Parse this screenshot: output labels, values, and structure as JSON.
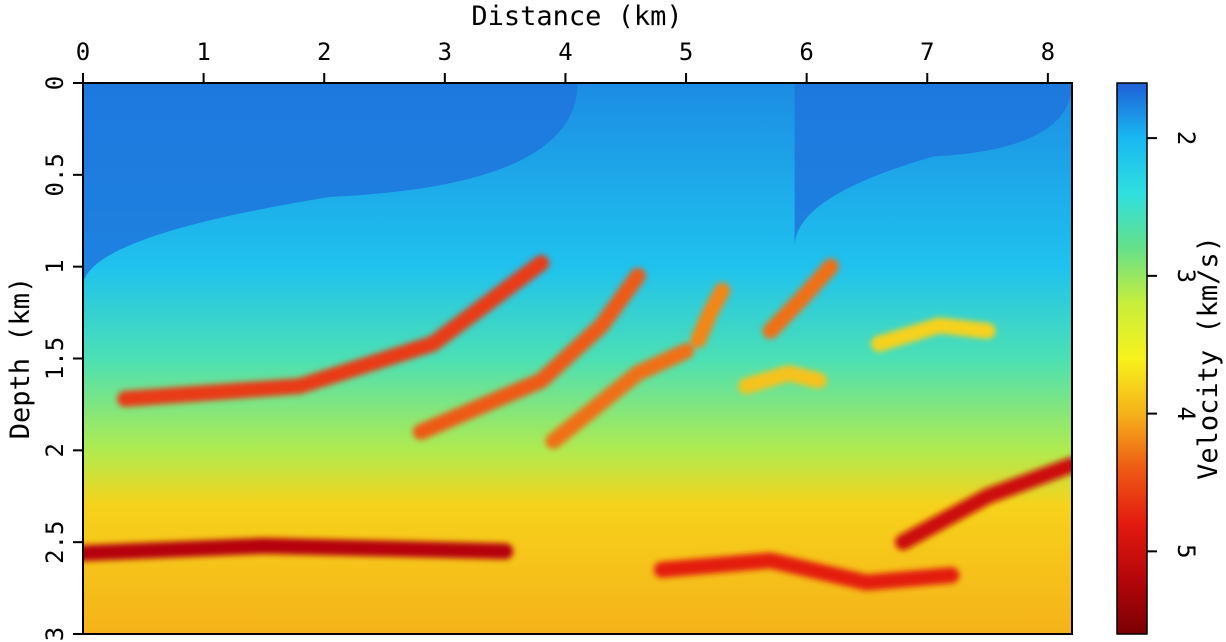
{
  "chart_data": {
    "type": "heatmap",
    "xlabel": "Distance (km)",
    "ylabel": "Depth (km)",
    "colorbar_label": "Velocity (km/s)",
    "x_axis_position": "top",
    "xlim": [
      0,
      8.2
    ],
    "ylim": [
      0,
      3
    ],
    "y_inverted": true,
    "x_ticks": [
      0,
      1,
      2,
      3,
      4,
      5,
      6,
      7,
      8
    ],
    "y_ticks": [
      0,
      0.5,
      1,
      1.5,
      2,
      2.5,
      3
    ],
    "colorbar_range": [
      1.6,
      5.6
    ],
    "colorbar_ticks": [
      2,
      3,
      4,
      5
    ],
    "colormap": [
      "#1f5fd6",
      "#19b8f2",
      "#2fe0e0",
      "#66e08a",
      "#c8ee3c",
      "#f7f21c",
      "#f5b21a",
      "#ee5a14",
      "#e31a10",
      "#b5060a",
      "#7a0004"
    ],
    "grid": false,
    "features": {
      "background_layers": [
        {
          "depth": 0.0,
          "velocity": 1.8
        },
        {
          "depth": 1.0,
          "velocity": 2.1
        },
        {
          "depth": 1.5,
          "velocity": 2.6
        },
        {
          "depth": 2.0,
          "velocity": 3.1
        },
        {
          "depth": 2.3,
          "velocity": 3.8
        },
        {
          "depth": 3.0,
          "velocity": 4.0
        }
      ],
      "high_velocity_streaks": [
        {
          "x": [
            0.35,
            1.8,
            2.9,
            3.8
          ],
          "depth": [
            1.72,
            1.65,
            1.42,
            0.98
          ],
          "velocity": 4.6
        },
        {
          "x": [
            2.8,
            3.8,
            4.3,
            4.6
          ],
          "depth": [
            1.9,
            1.62,
            1.32,
            1.05
          ],
          "velocity": 4.4
        },
        {
          "x": [
            3.9,
            4.6,
            5.0
          ],
          "depth": [
            1.95,
            1.58,
            1.46
          ],
          "velocity": 4.3
        },
        {
          "x": [
            5.1,
            5.2,
            5.3
          ],
          "depth": [
            1.4,
            1.25,
            1.13
          ],
          "velocity": 4.2
        },
        {
          "x": [
            5.7,
            5.95,
            6.2
          ],
          "depth": [
            1.35,
            1.18,
            1.0
          ],
          "velocity": 4.3
        },
        {
          "x": [
            6.6,
            7.1,
            7.5
          ],
          "depth": [
            1.42,
            1.32,
            1.35
          ],
          "velocity": 3.8
        },
        {
          "x": [
            5.5,
            5.85,
            6.1
          ],
          "depth": [
            1.65,
            1.58,
            1.62
          ],
          "velocity": 3.9
        },
        {
          "x": [
            0.0,
            1.5,
            3.5
          ],
          "depth": [
            2.56,
            2.52,
            2.55
          ],
          "velocity": 5.2
        },
        {
          "x": [
            6.8,
            7.5,
            8.2
          ],
          "depth": [
            2.5,
            2.25,
            2.08
          ],
          "velocity": 5.0
        },
        {
          "x": [
            4.8,
            5.7,
            6.5,
            7.2
          ],
          "depth": [
            2.65,
            2.6,
            2.72,
            2.68
          ],
          "velocity": 4.8
        }
      ],
      "low_velocity_wedges": [
        {
          "x_left": 0.0,
          "x_right": 4.1,
          "depth_top": 0.0,
          "depth_bottom": 0.62,
          "velocity": 1.7
        },
        {
          "x_left": 5.9,
          "x_right": 8.2,
          "depth_top": 0.0,
          "depth_bottom": 0.4,
          "velocity": 1.7
        }
      ]
    }
  }
}
